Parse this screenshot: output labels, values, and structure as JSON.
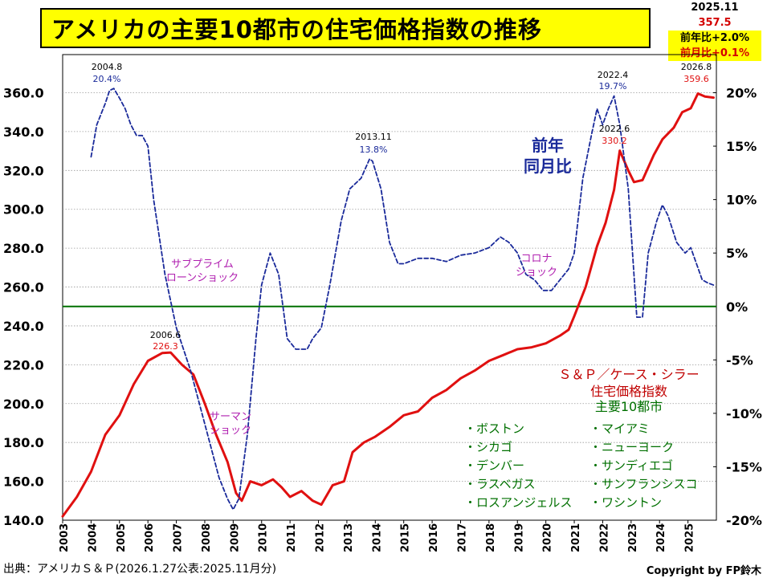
{
  "title": "アメリカの主要10都市の住宅価格指数の推移",
  "latest": {
    "date": "2025.11",
    "value": "357.5",
    "yoy": "前年比+2.0%",
    "mom": "前月比+0.1%"
  },
  "source": "出典：アメリカＳ＆Ｐ(2026.1.27公表:2025.11月分)",
  "copyright": "Copyright by FP鈴木",
  "colors": {
    "index_line": "#e01010",
    "yoy_line": "#1a2a9a",
    "zero_line": "#007000",
    "grid": "#9a9a9a",
    "annot_purple": "#b020b0",
    "legend_red": "#c00000",
    "legend_green": "#007000"
  },
  "chart_data": {
    "type": "line",
    "x_range": [
      2003.0,
      2026.0
    ],
    "x_ticks": [
      "2003",
      "2004",
      "2005",
      "2006",
      "2007",
      "2008",
      "2009",
      "2010",
      "2011",
      "2012",
      "2013",
      "2014",
      "2015",
      "2016",
      "2017",
      "2018",
      "2019",
      "2020",
      "2021",
      "2022",
      "2023",
      "2024",
      "2025"
    ],
    "ylim_left": [
      140,
      360
    ],
    "ytick_left": [
      "140.0",
      "160.0",
      "180.0",
      "200.0",
      "220.0",
      "240.0",
      "260.0",
      "280.0",
      "300.0",
      "320.0",
      "340.0",
      "360.0"
    ],
    "ylim_right": [
      -20,
      20
    ],
    "ytick_right": [
      "-20%",
      "-15%",
      "-10%",
      "-5%",
      "0%",
      "5%",
      "10%",
      "15%",
      "20%"
    ],
    "grid": "horizontal dashed",
    "series": [
      {
        "name": "Ｓ＆Ｐ／ケース・シラー住宅価格指数 主要10都市",
        "axis": "left",
        "style": "solid",
        "x": [
          2003.0,
          2003.5,
          2004.0,
          2004.5,
          2005.0,
          2005.5,
          2006.0,
          2006.5,
          2006.8,
          2007.2,
          2007.6,
          2008.0,
          2008.4,
          2008.8,
          2009.1,
          2009.3,
          2009.6,
          2010.0,
          2010.4,
          2010.7,
          2011.0,
          2011.4,
          2011.8,
          2012.1,
          2012.5,
          2012.9,
          2013.2,
          2013.6,
          2014.0,
          2014.5,
          2015.0,
          2015.5,
          2016.0,
          2016.5,
          2017.0,
          2017.5,
          2018.0,
          2018.5,
          2019.0,
          2019.5,
          2020.0,
          2020.5,
          2020.8,
          2021.0,
          2021.4,
          2021.8,
          2022.1,
          2022.4,
          2022.6,
          2022.9,
          2023.1,
          2023.4,
          2023.8,
          2024.1,
          2024.5,
          2024.8,
          2025.1,
          2025.35,
          2025.6,
          2025.9
        ],
        "values": [
          142,
          152,
          165,
          184,
          194,
          210,
          222,
          226,
          226.3,
          220,
          215,
          200,
          184,
          170,
          154,
          150,
          160,
          158,
          161,
          157,
          152,
          155,
          150,
          148,
          158,
          160,
          175,
          180,
          183,
          188,
          194,
          196,
          203,
          207,
          213,
          217,
          222,
          225,
          228,
          229,
          231,
          235,
          238,
          245,
          260,
          281,
          293,
          310,
          330.2,
          320,
          314,
          315,
          328,
          336,
          342,
          350,
          352,
          359.6,
          358,
          357.5
        ]
      },
      {
        "name": "前年同月比",
        "axis": "right",
        "style": "dashed",
        "x": [
          2004.0,
          2004.2,
          2004.5,
          2004.65,
          2004.8,
          2005.0,
          2005.2,
          2005.4,
          2005.6,
          2005.8,
          2006.0,
          2006.2,
          2006.6,
          2007.0,
          2007.5,
          2008.0,
          2008.5,
          2008.8,
          2009.0,
          2009.2,
          2009.5,
          2009.8,
          2010.0,
          2010.3,
          2010.6,
          2010.9,
          2011.2,
          2011.6,
          2011.8,
          2012.1,
          2012.4,
          2012.8,
          2013.1,
          2013.5,
          2013.8,
          2013.9,
          2014.2,
          2014.5,
          2014.8,
          2015.0,
          2015.5,
          2016.0,
          2016.5,
          2017.0,
          2017.5,
          2018.0,
          2018.4,
          2018.7,
          2019.0,
          2019.3,
          2019.6,
          2019.9,
          2020.2,
          2020.5,
          2020.8,
          2021.0,
          2021.3,
          2021.6,
          2021.8,
          2022.0,
          2022.2,
          2022.4,
          2022.6,
          2022.9,
          2023.2,
          2023.4,
          2023.6,
          2023.9,
          2024.1,
          2024.3,
          2024.6,
          2024.9,
          2025.1,
          2025.3,
          2025.5,
          2025.7,
          2025.9
        ],
        "values": [
          14,
          17,
          19,
          20.2,
          20.4,
          19.5,
          18.5,
          17,
          16,
          16,
          15,
          10,
          3,
          -2,
          -6,
          -11,
          -16,
          -18,
          -19,
          -18,
          -12,
          -3,
          2,
          5,
          3,
          -3,
          -4,
          -4,
          -3,
          -2,
          2,
          8,
          11,
          12,
          13.8,
          13.6,
          11,
          6,
          4,
          4,
          4.5,
          4.5,
          4.2,
          4.8,
          5,
          5.5,
          6.5,
          6,
          5,
          3,
          2.5,
          1.5,
          1.5,
          2.5,
          3.5,
          5,
          12,
          16,
          18.5,
          17,
          18.5,
          19.7,
          17,
          11,
          -1,
          -1,
          5,
          8,
          9.5,
          8.5,
          6,
          5,
          5.5,
          4,
          2.5,
          2.2,
          2.0
        ]
      }
    ],
    "annotations": [
      {
        "label": "2004.8",
        "value_label": "20.4%",
        "series": "yoy"
      },
      {
        "label": "2006.6",
        "value_label": "226.3",
        "series": "index"
      },
      {
        "label": "2013.11",
        "value_label": "13.8%",
        "series": "yoy"
      },
      {
        "label": "2022.4",
        "value_label": "19.7%",
        "series": "yoy"
      },
      {
        "label": "2022.6",
        "value_label": "330.2",
        "series": "index"
      },
      {
        "label": "2026.8",
        "value_label": "359.6",
        "series": "index"
      }
    ],
    "events": [
      {
        "text": [
          "サブプライム",
          "ローンショック"
        ]
      },
      {
        "text": [
          "サーマン",
          "ショック"
        ]
      },
      {
        "text": [
          "コロナ",
          "ショック"
        ]
      }
    ],
    "series_label": [
      "前年",
      "同月比"
    ],
    "legend_title": [
      "Ｓ＆Ｐ／ケース・シラー",
      "住宅価格指数"
    ],
    "legend_subtitle": "主要10都市",
    "cities_left": [
      "・ボストン",
      "・シカゴ",
      "・デンバー",
      "・ラスベガス",
      "・ロスアンジェルス"
    ],
    "cities_right": [
      "・マイアミ",
      "・ニューヨーク",
      "・サンディエゴ",
      "・サンフランシスコ",
      "・ワシントン"
    ]
  }
}
